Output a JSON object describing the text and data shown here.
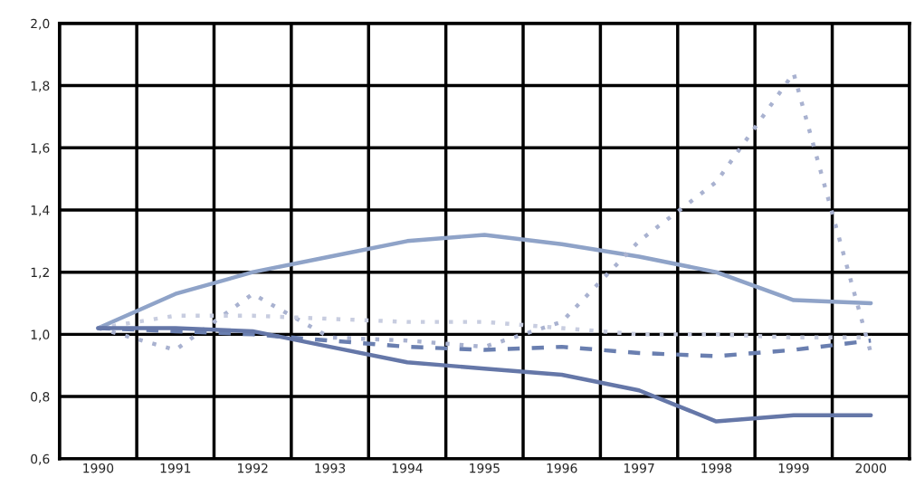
{
  "chart_data": {
    "type": "line",
    "categories": [
      "1990",
      "1991",
      "1992",
      "1993",
      "1994",
      "1995",
      "1996",
      "1997",
      "1998",
      "1999",
      "2000"
    ],
    "series": [
      {
        "color": "#8fa3c8",
        "line_style": "solid",
        "values": [
          1.02,
          1.13,
          1.2,
          1.25,
          1.3,
          1.32,
          1.29,
          1.25,
          1.2,
          1.11,
          1.1
        ]
      },
      {
        "color": "#a9b2d0",
        "line_style": "dotted",
        "values": [
          1.02,
          0.95,
          1.13,
          0.99,
          0.98,
          0.96,
          1.04,
          1.3,
          1.49,
          1.84,
          0.94
        ]
      },
      {
        "color": "#c8cde0",
        "line_style": "dotted",
        "values": [
          1.02,
          1.06,
          1.06,
          1.05,
          1.04,
          1.04,
          1.02,
          1.0,
          1.0,
          0.99,
          0.99
        ]
      },
      {
        "color": "#6a7fb0",
        "line_style": "dashed",
        "values": [
          1.02,
          1.01,
          1.0,
          0.98,
          0.96,
          0.95,
          0.96,
          0.94,
          0.93,
          0.95,
          0.98
        ]
      },
      {
        "color": "#6577a8",
        "line_style": "solid",
        "values": [
          1.02,
          1.02,
          1.01,
          0.96,
          0.91,
          0.89,
          0.87,
          0.82,
          0.72,
          0.74,
          0.74
        ]
      }
    ],
    "ylim": [
      0.6,
      2.0
    ],
    "yticks": [
      {
        "value": 0.6,
        "label": "0,6"
      },
      {
        "value": 0.8,
        "label": "0,8"
      },
      {
        "value": 1.0,
        "label": "1,0"
      },
      {
        "value": 1.2,
        "label": "1,2"
      },
      {
        "value": 1.4,
        "label": "1,4"
      },
      {
        "value": 1.6,
        "label": "1,6"
      },
      {
        "value": 1.8,
        "label": "1,8"
      },
      {
        "value": 2.0,
        "label": "2,0"
      }
    ],
    "grid": true,
    "legend": false,
    "marker": "none"
  }
}
